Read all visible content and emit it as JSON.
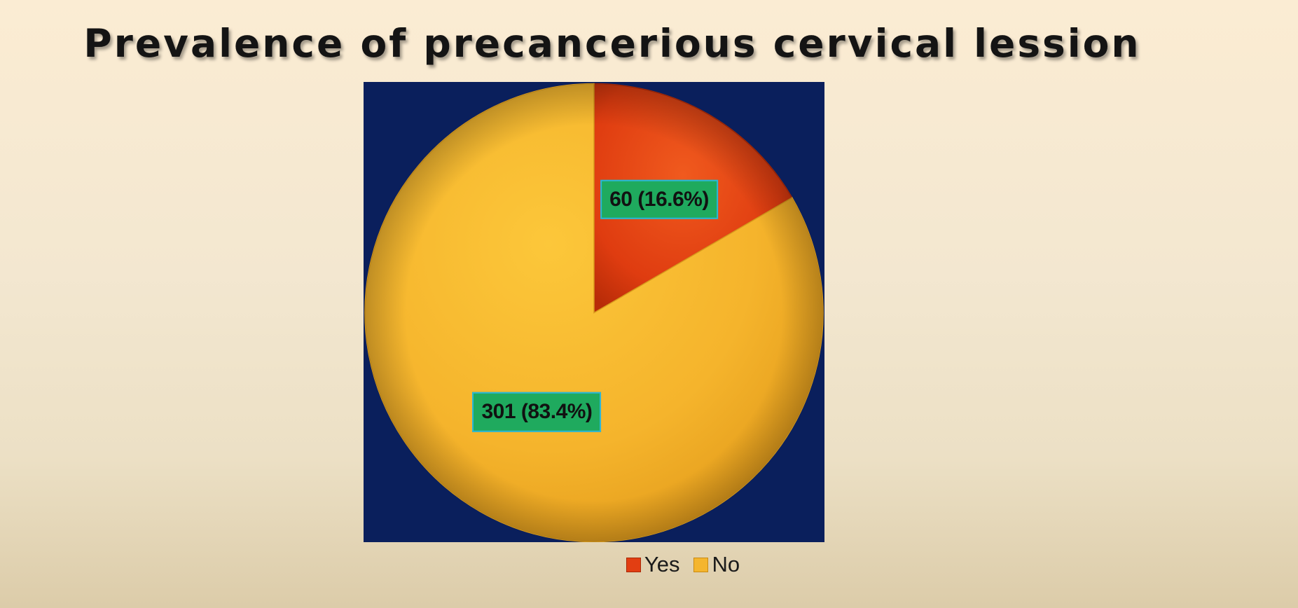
{
  "chart_data": {
    "type": "pie",
    "title": "Prevalence of precancerious cervical lession",
    "slices": [
      {
        "label": "Yes",
        "value": 60,
        "percent": 16.6,
        "data_label": "60 (16.6%)",
        "color": "#e23e12"
      },
      {
        "label": "No",
        "value": 301,
        "percent": 83.4,
        "data_label": "301 (83.4%)",
        "color": "#f4b52e"
      }
    ],
    "start": "12 o'clock",
    "direction": "clockwise",
    "legend_position": "bottom",
    "plot_background": "#0a1f5c",
    "label_background": "#1faa5e",
    "label_border": "#2bb7d9"
  }
}
